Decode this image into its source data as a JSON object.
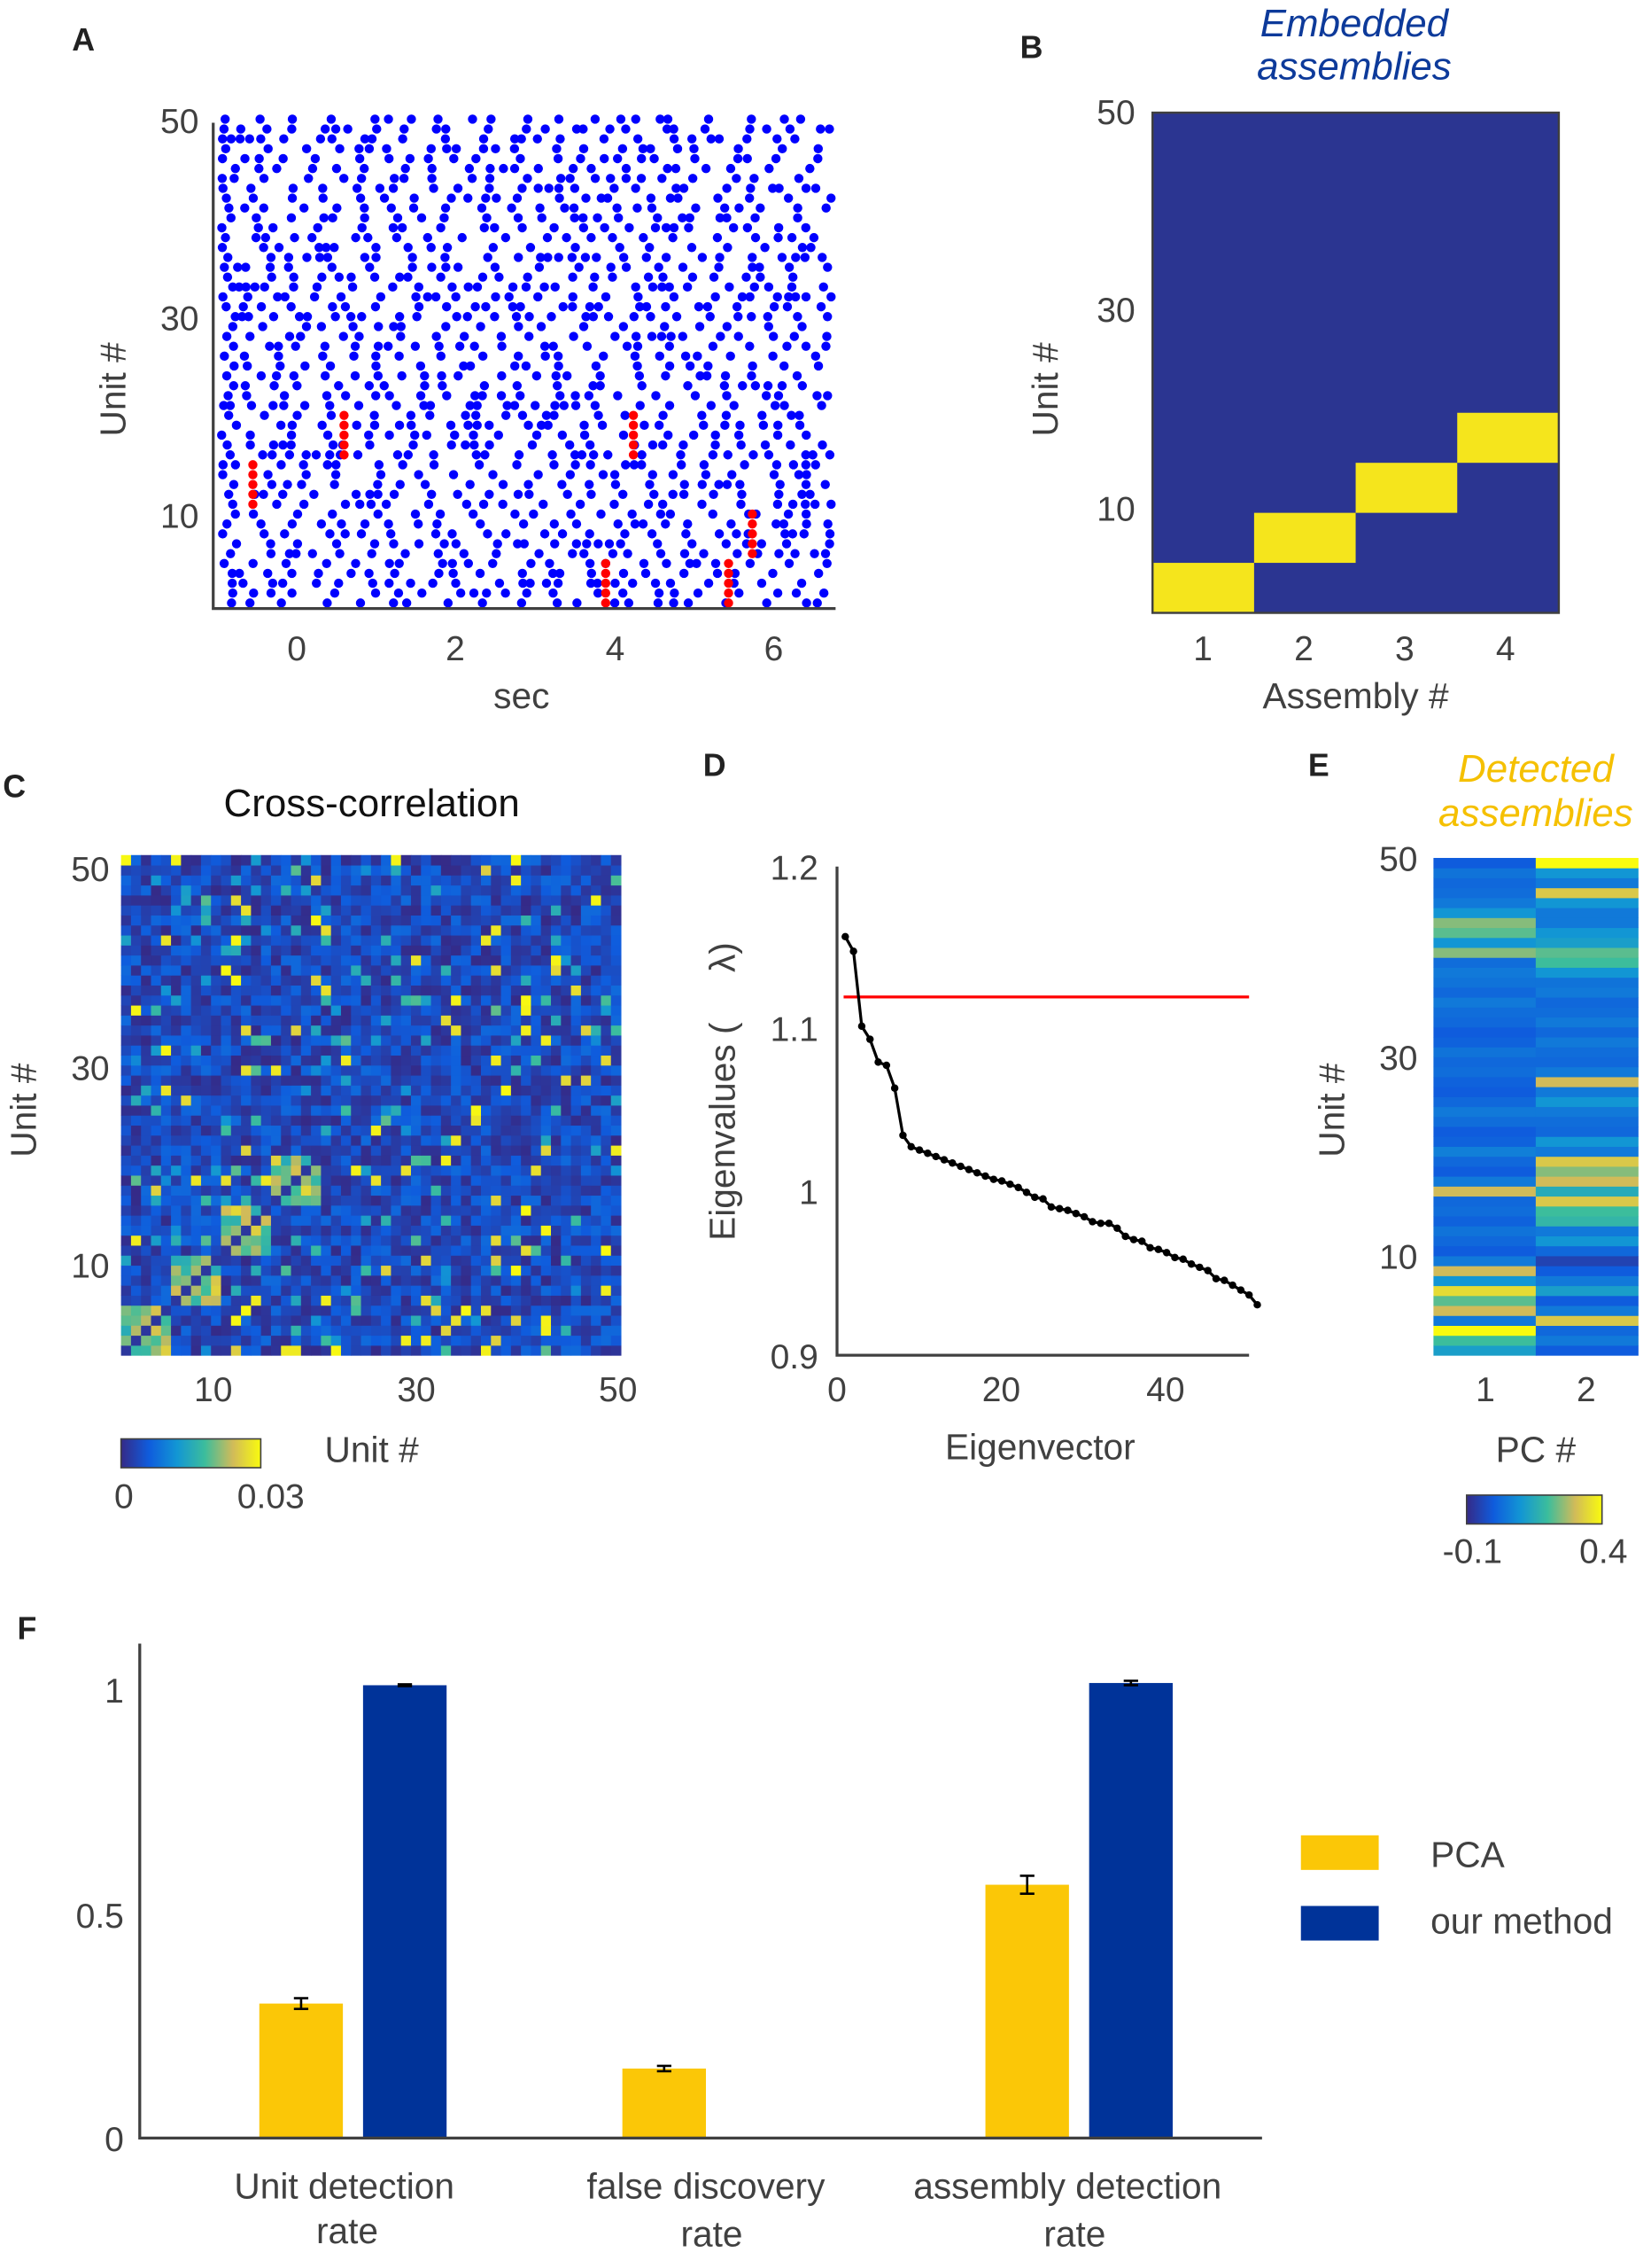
{
  "colors": {
    "spike": "#0000ff",
    "assembly_spike": "#ff0000",
    "pca": "#fbc707",
    "our_method": "#003399",
    "embedded_title": "#0d3a9a",
    "detected_title": "#f5c000",
    "threshold": "#ff0000"
  },
  "panels": {
    "A": "A",
    "B": "B",
    "C": "C",
    "D": "D",
    "E": "E",
    "F": "F"
  },
  "chart_data": [
    {
      "id": "A",
      "type": "scatter",
      "xlabel": "sec",
      "ylabel": "Unit #",
      "xticks": [
        "0",
        "2",
        "4",
        "6"
      ],
      "yticks": [
        "10",
        "30",
        "50"
      ],
      "xlim": [
        -1.05,
        6.8
      ],
      "ylim": [
        0,
        50
      ],
      "background_spikes": "random spiking of 50 units (blue dots)",
      "assembly_events": [
        {
          "t": -0.55,
          "units": [
            11,
            15
          ]
        },
        {
          "t": 0.6,
          "units": [
            16,
            20
          ]
        },
        {
          "t": 4.25,
          "units": [
            16,
            20
          ]
        },
        {
          "t": 3.9,
          "units": [
            1,
            5
          ]
        },
        {
          "t": 5.45,
          "units": [
            1,
            5
          ]
        },
        {
          "t": 5.75,
          "units": [
            6,
            10
          ]
        }
      ]
    },
    {
      "id": "B",
      "type": "heatmap",
      "title": "Embedded assemblies",
      "title_lines": [
        "Embedded",
        "assemblies"
      ],
      "xlabel": "Assembly #",
      "ylabel": "Unit #",
      "xticks": [
        "1",
        "2",
        "3",
        "4"
      ],
      "yticks": [
        "10",
        "30",
        "50"
      ],
      "assemblies": [
        {
          "assembly": 1,
          "units": [
            1,
            5
          ]
        },
        {
          "assembly": 2,
          "units": [
            6,
            10
          ]
        },
        {
          "assembly": 3,
          "units": [
            11,
            15
          ]
        },
        {
          "assembly": 4,
          "units": [
            16,
            20
          ]
        }
      ]
    },
    {
      "id": "C",
      "type": "heatmap",
      "title": "Cross-correlation",
      "xlabel": "Unit #",
      "ylabel": "Unit #",
      "xticks": [
        "10",
        "30",
        "50"
      ],
      "yticks": [
        "10",
        "30",
        "50"
      ],
      "colorbar": {
        "min_label": "0",
        "max_label": "0.03",
        "range": [
          0,
          0.03
        ]
      },
      "high_blocks": [
        [
          1,
          5
        ],
        [
          6,
          10
        ],
        [
          11,
          15
        ],
        [
          16,
          20
        ]
      ]
    },
    {
      "id": "D",
      "type": "line",
      "xlabel": "Eigenvector",
      "ylabel": "Eigenvalues (     λ)",
      "xticks": [
        "0",
        "20",
        "40"
      ],
      "yticks": [
        "0.9",
        "1",
        "1.1",
        "1.2"
      ],
      "xlim": [
        0,
        50
      ],
      "ylim": [
        0.9,
        1.2
      ],
      "threshold": 1.12,
      "values": [
        1.157,
        1.148,
        1.102,
        1.094,
        1.08,
        1.078,
        1.064,
        1.035,
        1.028,
        1.026,
        1.024,
        1.022,
        1.02,
        1.018,
        1.016,
        1.014,
        1.012,
        1.01,
        1.008,
        1.007,
        1.005,
        1.003,
        1.0,
        0.997,
        0.996,
        0.991,
        0.99,
        0.989,
        0.987,
        0.985,
        0.982,
        0.981,
        0.981,
        0.978,
        0.973,
        0.971,
        0.97,
        0.966,
        0.965,
        0.963,
        0.96,
        0.959,
        0.956,
        0.954,
        0.952,
        0.947,
        0.946,
        0.943,
        0.94,
        0.937,
        0.931
      ]
    },
    {
      "id": "E",
      "type": "heatmap",
      "title": "Detected assemblies",
      "title_lines": [
        "Detected",
        "assemblies"
      ],
      "xlabel": "PC #",
      "ylabel": "Unit #",
      "xticks": [
        "1",
        "2"
      ],
      "yticks": [
        "10",
        "30",
        "50"
      ],
      "colorbar": {
        "min_label": "-0.1",
        "max_label": "0.4",
        "range": [
          -0.1,
          0.4
        ]
      },
      "pc1": [
        0.12,
        0.2,
        0.4,
        0.05,
        0.3,
        0.22,
        0.35,
        0.1,
        0.3,
        0.05,
        0.0,
        0.02,
        0.04,
        0.01,
        0.03,
        0.02,
        0.3,
        0.05,
        0.0,
        0.02,
        0.06,
        0.01,
        0.0,
        0.03,
        0.05,
        0.02,
        0.0,
        0.01,
        0.03,
        0.02,
        0.04,
        0.01,
        0.0,
        0.02,
        0.03,
        0.05,
        0.02,
        0.04,
        0.05,
        0.03,
        0.25,
        0.1,
        0.22,
        0.25,
        0.1,
        0.05,
        0.03,
        0.02,
        0.04,
        0.0
      ],
      "pc2": [
        0.0,
        0.05,
        0.02,
        0.32,
        0.05,
        0.0,
        0.12,
        0.05,
        0.0,
        -0.05,
        0.02,
        0.1,
        0.05,
        0.18,
        0.2,
        0.32,
        0.15,
        0.3,
        0.25,
        0.32,
        0.05,
        0.1,
        0.02,
        0.03,
        0.05,
        0.1,
        0.05,
        0.3,
        0.05,
        0.02,
        0.03,
        0.05,
        0.02,
        0.05,
        0.03,
        0.02,
        0.05,
        0.04,
        0.1,
        0.2,
        0.22,
        0.12,
        0.1,
        0.05,
        0.05,
        0.1,
        0.32,
        0.05,
        0.1,
        0.4
      ]
    },
    {
      "id": "F",
      "type": "bar",
      "categories": [
        [
          "Unit detection",
          "rate"
        ],
        [
          "false discovery",
          "rate"
        ],
        [
          "assembly detection",
          "rate"
        ]
      ],
      "yticks": [
        "0",
        "0.5",
        "1"
      ],
      "ylim": [
        0,
        1.1
      ],
      "series": [
        {
          "name": "PCA",
          "values": [
            0.3,
            0.155,
            0.565
          ],
          "errors": [
            0.012,
            0.006,
            0.02
          ]
        },
        {
          "name": "our method",
          "values": [
            1.01,
            0.0,
            1.015
          ],
          "errors": [
            0.002,
            0.0,
            0.005
          ]
        }
      ],
      "legend": "right"
    }
  ]
}
